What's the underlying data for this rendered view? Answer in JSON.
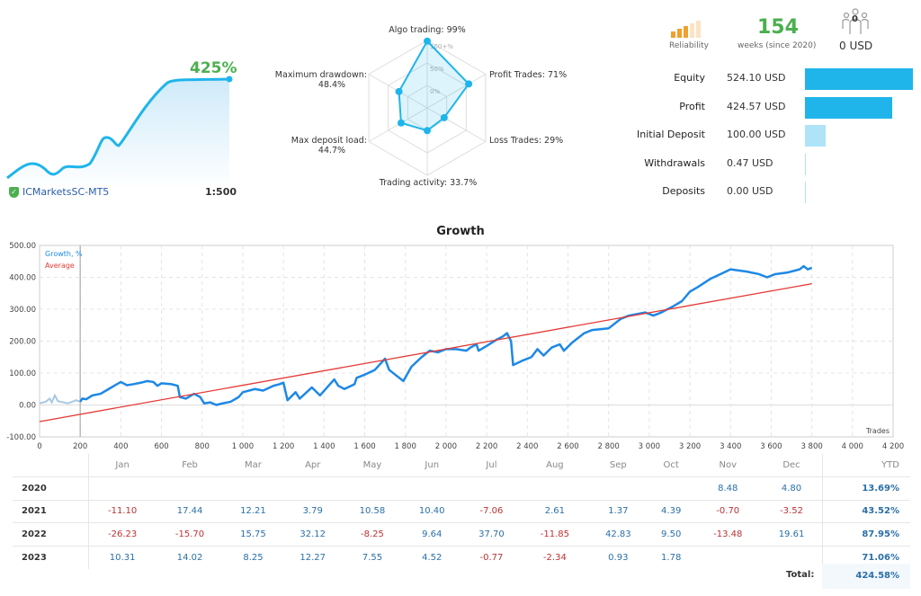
{
  "summary": {
    "gain": "425%",
    "broker": "ICMarketsSC-MT5",
    "leverage": "1:500"
  },
  "radar": {
    "axes": [
      {
        "label": "Algo trading: 99%",
        "value": 99
      },
      {
        "label": "Profit Trades: 71%",
        "value": 71
      },
      {
        "label": "Loss Trades: 29%",
        "value": 29
      },
      {
        "label": "Trading activity: 33.7%",
        "value": 33.7
      },
      {
        "label": "Max deposit load:",
        "label2": "44.7%",
        "value": 44.7
      },
      {
        "label": "Maximum drawdown:",
        "label2": "48.4%",
        "value": 48.4
      }
    ],
    "ring_labels": [
      "100+%",
      "50%",
      "0%"
    ]
  },
  "header": {
    "reliability_label": "Reliability",
    "weeks": "154",
    "weeks_label": "weeks (since 2020)",
    "subscribers": "0",
    "subscribers_usd": "0 USD"
  },
  "stats": [
    {
      "label": "Equity",
      "value": "524.10 USD",
      "amount": 524.1
    },
    {
      "label": "Profit",
      "value": "424.57 USD",
      "amount": 424.57
    },
    {
      "label": "Initial Deposit",
      "value": "100.00 USD",
      "amount": 100.0
    },
    {
      "label": "Withdrawals",
      "value": "0.47 USD",
      "amount": 0.47
    },
    {
      "label": "Deposits",
      "value": "0.00 USD",
      "amount": 0.0
    }
  ],
  "colors": {
    "accent": "#1fb5ea",
    "light": "#aee3f8",
    "growth": "#1e88e5",
    "average": "#e53935",
    "positive": "#2a6fa8",
    "negative": "#b33333",
    "gain": "#4caf50"
  },
  "chart_data": {
    "type": "line",
    "title": "Growth",
    "xlabel": "Trades",
    "ylabel": "",
    "xlim": [
      0,
      4200
    ],
    "ylim": [
      -100,
      500
    ],
    "grid": true,
    "legend": "top-left",
    "xticks": [
      "0",
      "200",
      "400",
      "600",
      "800",
      "1 000",
      "1 200",
      "1 400",
      "1 600",
      "1 800",
      "2 000",
      "2 200",
      "2 400",
      "2 600",
      "2 800",
      "3 000",
      "3 200",
      "3 400",
      "3 600",
      "3 800",
      "4 000",
      "4 200"
    ],
    "yticks": [
      "500.00",
      "400.00",
      "300.00",
      "200.00",
      "100.00",
      "0.00",
      "-100.00"
    ],
    "series": [
      {
        "name": "Growth, %",
        "points": [
          [
            0,
            5
          ],
          [
            30,
            10
          ],
          [
            50,
            20
          ],
          [
            60,
            8
          ],
          [
            75,
            30
          ],
          [
            90,
            12
          ],
          [
            140,
            5
          ],
          [
            180,
            15
          ],
          [
            200,
            10
          ],
          [
            210,
            20
          ],
          [
            230,
            18
          ],
          [
            260,
            30
          ],
          [
            300,
            35
          ],
          [
            340,
            50
          ],
          [
            380,
            65
          ],
          [
            400,
            72
          ],
          [
            430,
            62
          ],
          [
            460,
            65
          ],
          [
            500,
            70
          ],
          [
            530,
            75
          ],
          [
            560,
            72
          ],
          [
            580,
            60
          ],
          [
            600,
            68
          ],
          [
            650,
            65
          ],
          [
            680,
            60
          ],
          [
            690,
            25
          ],
          [
            720,
            20
          ],
          [
            760,
            35
          ],
          [
            790,
            25
          ],
          [
            810,
            5
          ],
          [
            840,
            8
          ],
          [
            870,
            0
          ],
          [
            900,
            5
          ],
          [
            940,
            10
          ],
          [
            980,
            25
          ],
          [
            1000,
            40
          ],
          [
            1060,
            50
          ],
          [
            1100,
            45
          ],
          [
            1150,
            60
          ],
          [
            1180,
            65
          ],
          [
            1200,
            70
          ],
          [
            1220,
            15
          ],
          [
            1260,
            40
          ],
          [
            1280,
            20
          ],
          [
            1340,
            55
          ],
          [
            1380,
            30
          ],
          [
            1450,
            80
          ],
          [
            1470,
            60
          ],
          [
            1500,
            50
          ],
          [
            1550,
            65
          ],
          [
            1560,
            85
          ],
          [
            1600,
            95
          ],
          [
            1650,
            110
          ],
          [
            1700,
            145
          ],
          [
            1720,
            110
          ],
          [
            1760,
            90
          ],
          [
            1790,
            75
          ],
          [
            1830,
            120
          ],
          [
            1880,
            150
          ],
          [
            1920,
            170
          ],
          [
            1960,
            165
          ],
          [
            2000,
            175
          ],
          [
            2050,
            175
          ],
          [
            2100,
            170
          ],
          [
            2120,
            180
          ],
          [
            2150,
            190
          ],
          [
            2160,
            170
          ],
          [
            2200,
            185
          ],
          [
            2250,
            205
          ],
          [
            2280,
            215
          ],
          [
            2300,
            225
          ],
          [
            2320,
            200
          ],
          [
            2330,
            125
          ],
          [
            2380,
            140
          ],
          [
            2420,
            150
          ],
          [
            2450,
            175
          ],
          [
            2480,
            155
          ],
          [
            2520,
            180
          ],
          [
            2560,
            190
          ],
          [
            2580,
            170
          ],
          [
            2620,
            195
          ],
          [
            2680,
            225
          ],
          [
            2720,
            235
          ],
          [
            2800,
            240
          ],
          [
            2860,
            270
          ],
          [
            2900,
            280
          ],
          [
            2980,
            290
          ],
          [
            3000,
            285
          ],
          [
            3020,
            280
          ],
          [
            3060,
            290
          ],
          [
            3120,
            310
          ],
          [
            3160,
            325
          ],
          [
            3200,
            355
          ],
          [
            3240,
            370
          ],
          [
            3300,
            395
          ],
          [
            3350,
            410
          ],
          [
            3400,
            425
          ],
          [
            3480,
            418
          ],
          [
            3540,
            410
          ],
          [
            3580,
            400
          ],
          [
            3620,
            410
          ],
          [
            3680,
            415
          ],
          [
            3740,
            425
          ],
          [
            3760,
            435
          ],
          [
            3780,
            425
          ],
          [
            3800,
            430
          ]
        ]
      },
      {
        "name": "Average",
        "points": [
          [
            0,
            -52
          ],
          [
            3800,
            380
          ]
        ]
      }
    ],
    "marker_x": 200
  },
  "monthly": {
    "headers": [
      "Jan",
      "Feb",
      "Mar",
      "Apr",
      "May",
      "Jun",
      "Jul",
      "Aug",
      "Sep",
      "Oct",
      "Nov",
      "Dec",
      "YTD"
    ],
    "rows": [
      {
        "year": "2020",
        "values": [
          "",
          "",
          "",
          "",
          "",
          "",
          "",
          "",
          "",
          "",
          "8.48",
          "4.80"
        ],
        "ytd": "13.69%"
      },
      {
        "year": "2021",
        "values": [
          "-11.10",
          "17.44",
          "12.21",
          "3.79",
          "10.58",
          "10.40",
          "-7.06",
          "2.61",
          "1.37",
          "4.39",
          "-0.70",
          "-3.52"
        ],
        "ytd": "43.52%"
      },
      {
        "year": "2022",
        "values": [
          "-26.23",
          "-15.70",
          "15.75",
          "32.12",
          "-8.25",
          "9.64",
          "37.70",
          "-11.85",
          "42.83",
          "9.50",
          "-13.48",
          "19.61"
        ],
        "ytd": "87.95%"
      },
      {
        "year": "2023",
        "values": [
          "10.31",
          "14.02",
          "8.25",
          "12.27",
          "7.55",
          "4.52",
          "-0.77",
          "-2.34",
          "0.93",
          "1.78",
          "",
          ""
        ],
        "ytd": "71.06%"
      }
    ],
    "total_label": "Total:",
    "total": "424.58%"
  }
}
